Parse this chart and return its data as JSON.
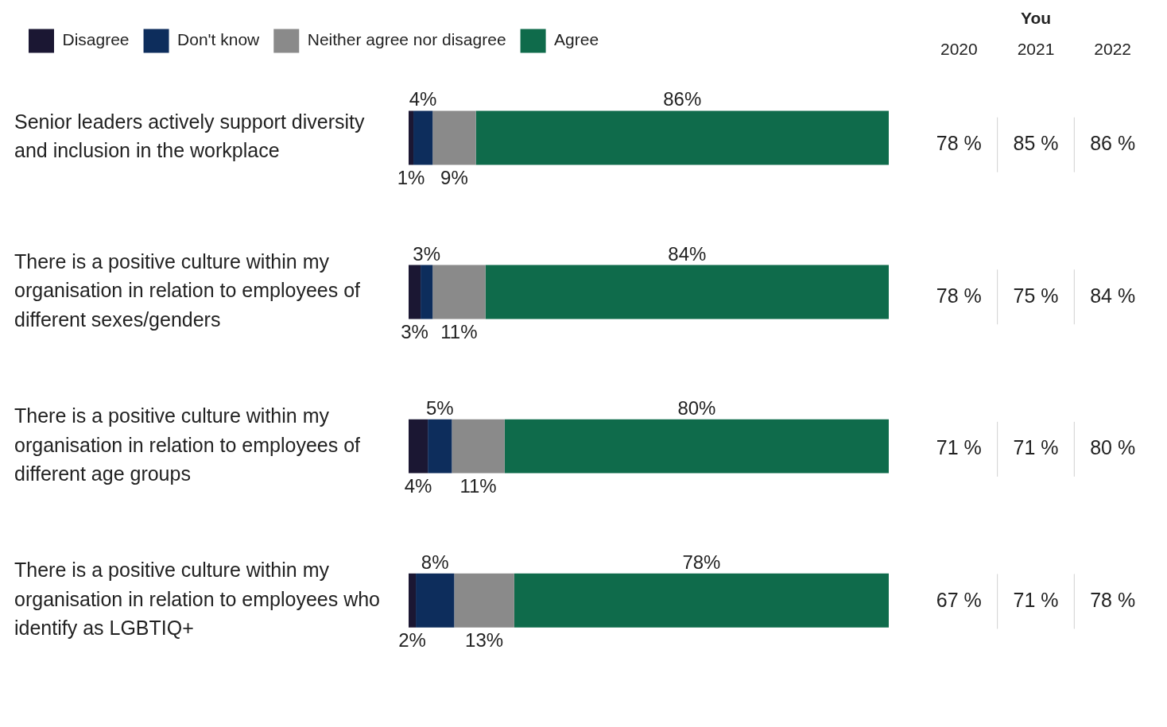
{
  "chart_data": [
    {
      "type": "bar",
      "orientation": "horizontal",
      "stacked": true,
      "legend": "top",
      "categories": [
        "Senior leaders actively support diversity and inclusion in the workplace",
        "There is a positive culture within my organisation in relation to employees of different sexes/genders",
        "There is a positive culture within my organisation in relation to employees of different age groups",
        "There is a positive culture within my organisation in relation to employees who identify as LGBTIQ+"
      ],
      "series": [
        {
          "name": "Disagree",
          "color": "#1b1733",
          "values": [
            1,
            2.5,
            4,
            1.5
          ],
          "value_labels": [
            "1%",
            "3%",
            "4%",
            "2%"
          ]
        },
        {
          "name": "Don't know",
          "color": "#0d2d5c",
          "values": [
            4,
            2.5,
            5,
            8
          ],
          "value_labels": [
            "4%",
            "3%",
            "5%",
            "8%"
          ]
        },
        {
          "name": "Neither agree nor disagree",
          "color": "#8a8a8a",
          "values": [
            9,
            11,
            11,
            12.5
          ],
          "value_labels": [
            "9%",
            "11%",
            "11%",
            "13%"
          ]
        },
        {
          "name": "Agree",
          "color": "#0f6b4b",
          "values": [
            86,
            84,
            80,
            78
          ],
          "value_labels": [
            "86%",
            "84%",
            "80%",
            "78%"
          ]
        }
      ]
    },
    {
      "type": "other",
      "title": "You",
      "categories": [
        "2020",
        "2021",
        "2022"
      ],
      "cell_labels": [
        [
          "78 %",
          "85 %",
          "86 %"
        ],
        [
          "78 %",
          "75 %",
          "84 %"
        ],
        [
          "71 %",
          "71 %",
          "80 %"
        ],
        [
          "67 %",
          "71 %",
          "78 %"
        ]
      ]
    }
  ]
}
